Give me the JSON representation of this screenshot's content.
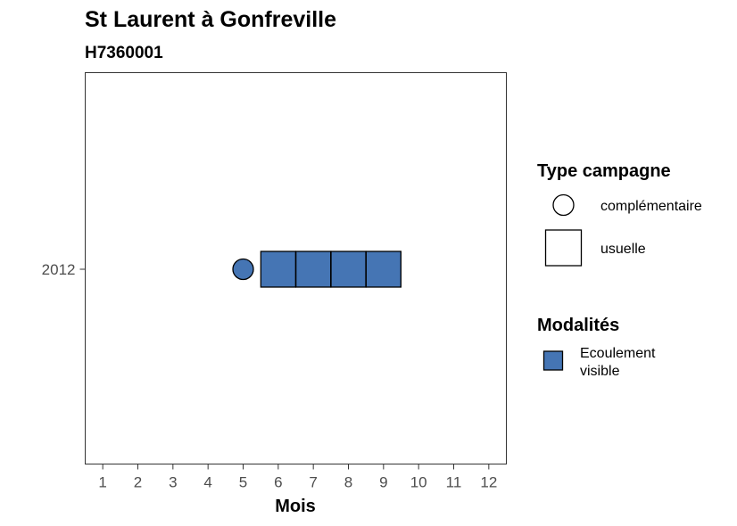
{
  "chart_data": {
    "type": "scatter",
    "title": "St Laurent à Gonfreville",
    "subtitle": "H7360001",
    "xlabel": "Mois",
    "ylabel": "",
    "x_ticks": [
      "1",
      "2",
      "3",
      "4",
      "5",
      "6",
      "7",
      "8",
      "9",
      "10",
      "11",
      "12"
    ],
    "y_ticks": [
      "2012"
    ],
    "xlim": [
      0.5,
      12.5
    ],
    "grid": false,
    "points": [
      {
        "x": 5,
        "y": "2012",
        "campagne": "complémentaire",
        "modalite": "Ecoulement visible"
      },
      {
        "x": 6,
        "y": "2012",
        "campagne": "usuelle",
        "modalite": "Ecoulement visible"
      },
      {
        "x": 7,
        "y": "2012",
        "campagne": "usuelle",
        "modalite": "Ecoulement visible"
      },
      {
        "x": 8,
        "y": "2012",
        "campagne": "usuelle",
        "modalite": "Ecoulement visible"
      },
      {
        "x": 9,
        "y": "2012",
        "campagne": "usuelle",
        "modalite": "Ecoulement visible"
      }
    ],
    "legend_position": "right",
    "legend_shape": {
      "title": "Type campagne",
      "items": [
        {
          "label": "complémentaire",
          "shape": "circle"
        },
        {
          "label": "usuelle",
          "shape": "square"
        }
      ]
    },
    "legend_fill": {
      "title": "Modalités",
      "items": [
        {
          "label_lines": [
            "Ecoulement",
            "visible"
          ],
          "color": "#4575b4"
        }
      ]
    }
  }
}
